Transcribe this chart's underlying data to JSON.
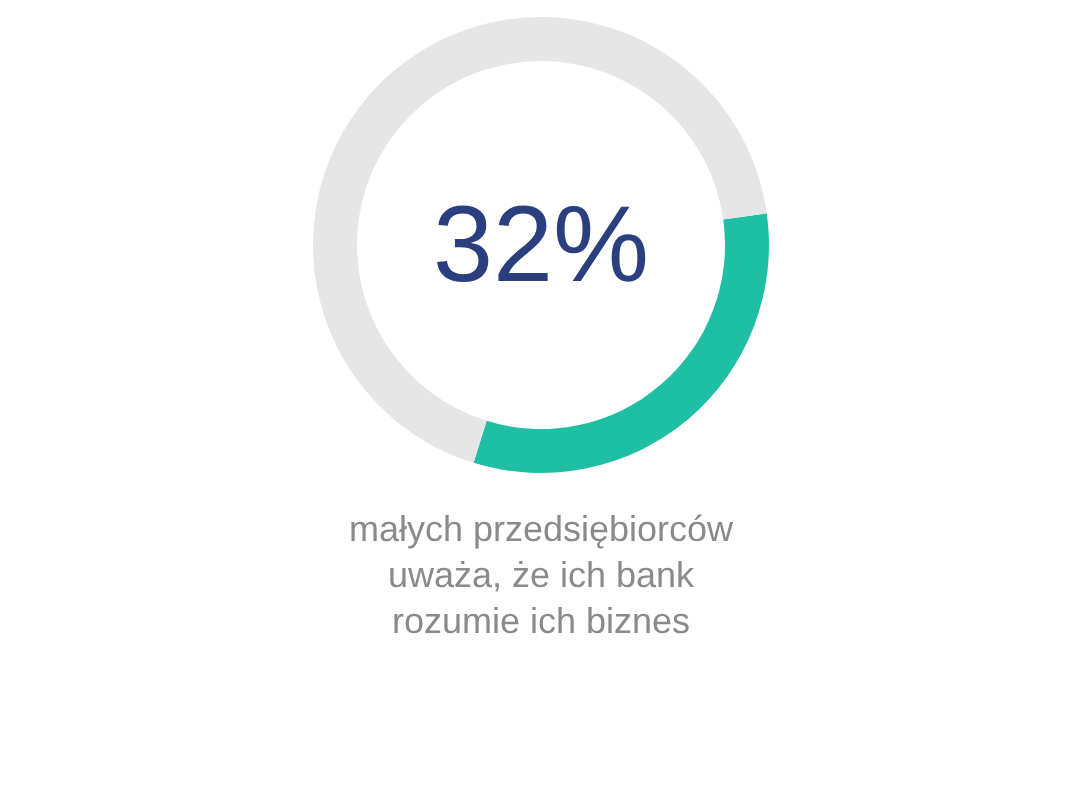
{
  "chart_data": {
    "type": "donut",
    "categories": [
      null,
      null
    ],
    "values": [
      32,
      68
    ],
    "colors": [
      "#1fbfa6",
      "#e6e6e6"
    ],
    "annotations": [
      "32%"
    ],
    "subtitle": "małych przedsiębiorców\nuważa, że ich bank\nrozumie ich biznes"
  }
}
